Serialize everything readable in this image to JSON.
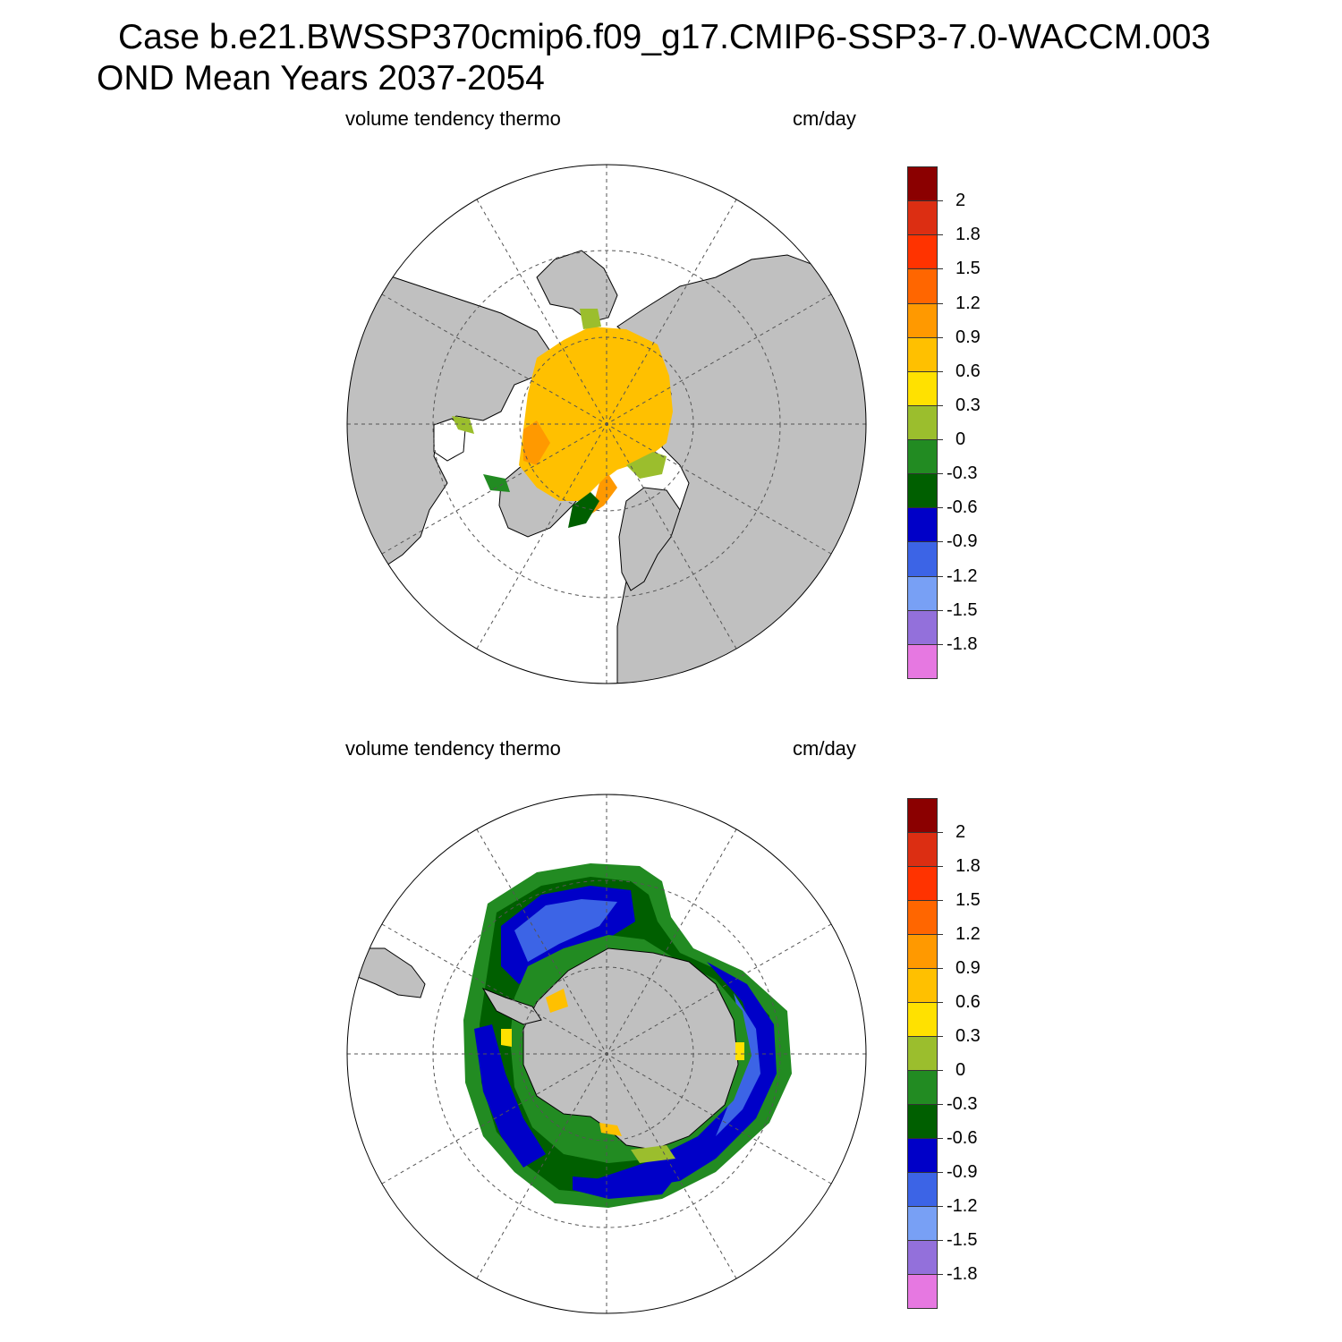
{
  "header": {
    "title_line1": "Case b.e21.BWSSP370cmip6.f09_g17.CMIP6-SSP3-7.0-WACCM.003",
    "title_line2": "OND Mean   Years 2037-2054"
  },
  "colors": {
    "land": "#c0c0c0",
    "ocean": "#ffffff",
    "coast": "#000000",
    "grid": "#555555"
  },
  "colorbar": {
    "labels": [
      "2",
      "1.8",
      "1.5",
      "1.2",
      "0.9",
      "0.6",
      "0.3",
      "0",
      "-0.3",
      "-0.6",
      "-0.9",
      "-1.2",
      "-1.5",
      "-1.8"
    ],
    "colors": [
      "#8b0000",
      "#dc2e12",
      "#ff3300",
      "#ff6600",
      "#ff9900",
      "#ffc000",
      "#ffe100",
      "#9bbe2d",
      "#228b22",
      "#005f00",
      "#0000c8",
      "#3c64e6",
      "#78a0f5",
      "#9370db",
      "#e678e1"
    ]
  },
  "panels": [
    {
      "id": "north",
      "label_left": "volume tendency thermo",
      "label_right": "cm/day",
      "hemisphere": "north polar stereographic",
      "field_summary": "Arctic Ocean mostly 0.6 to 0.9 growth; marginal zones near 0 to -0.6"
    },
    {
      "id": "south",
      "label_left": "volume tendency thermo",
      "label_right": "cm/day",
      "hemisphere": "south polar stereographic",
      "field_summary": "Ring of sea ice around Antarctica: outer band -0.3 to -0.6, inner blue band -0.6 to -1.2, thin coastal 0 to 0.9"
    }
  ]
}
